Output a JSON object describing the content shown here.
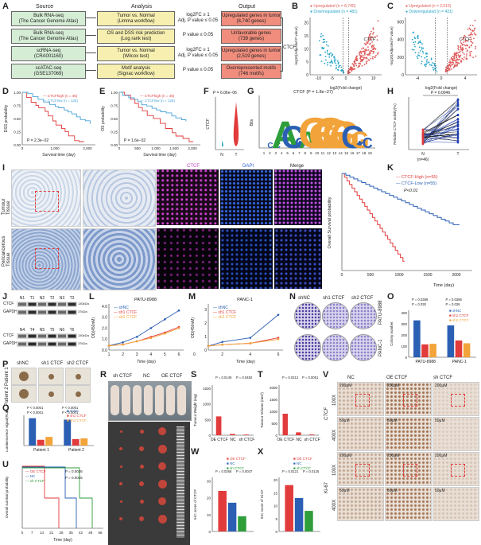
{
  "panelA": {
    "label": "A",
    "headers": [
      "Source",
      "Analysis",
      "Output"
    ],
    "rows": [
      {
        "source": "Bulk RNA-seq\n(The Cancer Genome Atlas)",
        "analysis": "Tumor vs. Normal\n(Limma workflow)",
        "criteria": "log2FC ≥ 1\nAdj. P value ≤ 0.05",
        "output": "Upregulated genes in tumor\n(8,740 genes)"
      },
      {
        "source": "Bulk RNA-seq\n(The Cancer Genome Atlas)",
        "analysis": "OS and DSS risk prediction\n(Log rank test)",
        "criteria": "P value ≤ 0.05",
        "output": "Unfavorable genes\n(739 genes)"
      },
      {
        "source": "scRNA-seq\n(CRA001160)",
        "analysis": "Tumor vs. Normal\n(Wilcox test)",
        "criteria": "log2FC ≥ 1\nAdj. P value ≤ 0.05",
        "output": "Upregulated genes in tumor\n(2,519 genes)"
      },
      {
        "source": "scATAC-seq\n(GSE137069)",
        "analysis": "Motif analysis\n(Signac workflow)",
        "criteria": "P value ≤ 0.05",
        "output": "Overrepresented motifs\n(746 motifs)"
      }
    ],
    "result": "CTCF"
  },
  "panelB": {
    "label": "B",
    "legend_up": "Upregulated (n = 8,740)",
    "legend_down": "Downregulated (n = 481)",
    "gene": "CTCF",
    "xlabel": "log2(Fold change)",
    "ylabel": "-log10(Adjusted P value)",
    "xticks": [
      "-10",
      "-5",
      "0",
      "5",
      "10"
    ],
    "yticks": [
      "0",
      "5",
      "10",
      "15",
      "20"
    ]
  },
  "panelC": {
    "label": "C",
    "legend_up": "Upregulated (n = 2,519)",
    "legend_down": "Downregulated (n = 421)",
    "gene": "CTCF",
    "xlabel": "log2(Fold change)",
    "ylabel": "-log10(Adjusted P value)",
    "xticks": [
      "-4",
      "0",
      "4"
    ],
    "yticks": [
      "0",
      "200",
      "400",
      "600"
    ]
  },
  "panelD": {
    "label": "D",
    "legend_high": "CTCFhigh (n = 45)",
    "legend_low": "CTCFlow (n = 125)",
    "pvalue": "P = 2.3e−02",
    "xlabel": "Survival time (day)",
    "ylabel": "DSS probability",
    "xticks": [
      "0",
      "1,000",
      "2,000"
    ],
    "yticks": [
      "0.00",
      "0.25",
      "0.50",
      "0.75",
      "1.00"
    ]
  },
  "panelE": {
    "label": "E",
    "legend_high": "CTCFhigh (n = 45)",
    "legend_low": "CTCFlow (n = 125)",
    "pvalue": "P = 1.6e−02",
    "xlabel": "Survival time (day)",
    "ylabel": "OS probability",
    "xticks": [
      "0",
      "500",
      "1,000",
      "1,500",
      "2,000"
    ],
    "yticks": [
      "0.00",
      "0.25",
      "0.50",
      "0.75",
      "1.00"
    ]
  },
  "panelF": {
    "label": "F",
    "pvalue": "P = 6.06e−06",
    "ylabel": "CTCF",
    "xticks": [
      "N",
      "T"
    ]
  },
  "panelG": {
    "label": "G",
    "title": "CTCF (P = 1.8e−27)",
    "ylabel": "Bits",
    "positions": [
      "1",
      "2",
      "3",
      "4",
      "5",
      "6",
      "7",
      "8",
      "9",
      "10",
      "11",
      "12",
      "13",
      "14",
      "15",
      "16",
      "17",
      "18",
      "19"
    ],
    "logo": "CCACCAGGGGGCGC"
  },
  "panelH": {
    "label": "H",
    "pvalue": "P = 0.0046",
    "ylabel": "Relative CTCF activity(%)",
    "xticks": [
      "N",
      "T"
    ],
    "n": "(n=46)"
  },
  "panelI": {
    "label": "I",
    "row1": "Tumour\nTissue",
    "row2": "Pericancerous\nTissue",
    "channels": [
      "CTCF",
      "DAPI",
      "Merge"
    ]
  },
  "panelK": {
    "label": "K",
    "legend_high": "CTCF-High  (n=55)",
    "legend_low": "CTCF-Low   (n=55)",
    "pvalue": "P<0.01",
    "xlabel": "Time (day)",
    "ylabel": "Overall Survival probability",
    "xticks": [
      "0",
      "500",
      "1000",
      "1500",
      "2000"
    ]
  },
  "panelJ": {
    "label": "J",
    "top_lanes": [
      "N1",
      "T1",
      "N2",
      "T2",
      "N3",
      "T3"
    ],
    "bottom_lanes": [
      "N4",
      "T4",
      "N5",
      "T5",
      "N6",
      "T6"
    ],
    "rows": [
      "CTCF",
      "GAPDH"
    ],
    "kda": [
      "130kDa",
      "37kDa"
    ]
  },
  "panelL": {
    "label": "L",
    "title": "PATU-8988",
    "series": [
      "shNC",
      "sh1 CTCF",
      "sh2 CTCF"
    ],
    "xlabel": "Time (day)",
    "ylabel": "OD(450nM)",
    "xticks": [
      "1",
      "2",
      "3",
      "4",
      "5",
      "6"
    ],
    "yticks": [
      "0.0",
      "1.0",
      "2.0",
      "3.0",
      "4.0"
    ]
  },
  "panelM": {
    "label": "M",
    "title": "PANC-1",
    "series": [
      "shNC",
      "sh1 CTCF",
      "sh2 CTCF"
    ],
    "xlabel": "Time (day)",
    "ylabel": "OD(450nM)",
    "xticks": [
      "0",
      "2",
      "4",
      "6"
    ],
    "yticks": [
      "0",
      "1",
      "2",
      "3"
    ]
  },
  "panelN": {
    "label": "N",
    "cols": [
      "shNC",
      "sh1 CTCF",
      "sh2 CTCF"
    ],
    "rows": [
      "PATU-8988",
      "PANC-1"
    ]
  },
  "panelO": {
    "label": "O",
    "series": [
      "shNC",
      "sh1 CTCF",
      "sh2 CTCF"
    ],
    "categories": [
      "PATU-8988",
      "PANC-1"
    ],
    "ylabel": "Colony number",
    "pvals": [
      "P = 0.0386",
      "P = 0.0386",
      "P = 0.030",
      "P = 0.036"
    ],
    "yticks": [
      "0",
      "100",
      "200",
      "300",
      "400"
    ]
  },
  "panelP": {
    "label": "P",
    "cols": [
      "shNC",
      "sh1 CTCF",
      "sh2 CTCF"
    ],
    "rows": [
      "Patient 1",
      "Patient 2"
    ]
  },
  "panelQ": {
    "label": "Q",
    "series": [
      "shNC",
      "sh1 CTCF",
      "sh2 CTCF"
    ],
    "categories": [
      "Patient 1",
      "Patient 2"
    ],
    "ylabel": "Luminescence signal(RLU)",
    "pvals": [
      "P < 0.0001",
      "P < 0.0001",
      "P < 0.0001",
      "P < 0.0001"
    ]
  },
  "panelR": {
    "label": "R",
    "cols": [
      "sh CTCF",
      "NC",
      "OE CTCF"
    ]
  },
  "panelS": {
    "label": "S",
    "ylabel": "Tumour Weight (mg)",
    "categories": [
      "OE CTCF",
      "NC",
      "sh CTCF"
    ],
    "pvals": [
      "P = 0.0149",
      "P = 0.0482"
    ],
    "yticks": [
      "0",
      "500",
      "1000",
      "1500"
    ]
  },
  "panelT": {
    "label": "T",
    "ylabel": "Tumour Volume (mm³)",
    "categories": [
      "OE CTCF",
      "NC",
      "sh CTCF"
    ],
    "pvals": [
      "P = 0.0212",
      "P = 0.0051"
    ],
    "yticks": [
      "0",
      "500",
      "1000",
      "1500",
      "2000"
    ]
  },
  "panelU": {
    "label": "U",
    "series": [
      "OE CTCF",
      "NC",
      "sh CTCF"
    ],
    "pvals": [
      "P = 0.0036",
      "P = 0.0045"
    ],
    "xlabel": "Time (day)",
    "ylabel": "Overall survival probability",
    "xticks": [
      "0",
      "7",
      "14",
      "21",
      "28",
      "35",
      "42",
      "49",
      "56"
    ]
  },
  "panelV": {
    "label": "V",
    "cols": [
      "NC",
      "OE CTCF",
      "sh CTCF"
    ],
    "rows": [
      "100X",
      "400X",
      "100X",
      "400X"
    ],
    "groups": [
      "CTCF",
      "Ki-67"
    ],
    "scale": [
      "200μM",
      "50μM"
    ]
  },
  "panelW": {
    "label": "W",
    "series": [
      "OE CTCF",
      "NC",
      "sh CTCF"
    ],
    "ylabel": "IHC score of CTCF",
    "pvals": [
      "P = 0.0266",
      "P = 0.0037"
    ],
    "yticks": [
      "0",
      "10",
      "20",
      "30"
    ]
  },
  "panelX": {
    "label": "X",
    "series": [
      "OE CTCF",
      "NC",
      "sh CTCF"
    ],
    "ylabel": "IHC score of Ki-67",
    "pvals": [
      "P = 0.0121",
      "P = 0.0125"
    ],
    "yticks": [
      "0",
      "5",
      "10",
      "15",
      "20"
    ]
  },
  "colors": {
    "red": "#e23b3b",
    "blue": "#2b5fb4",
    "orange": "#f2a43a",
    "green": "#2e9e3b",
    "up": "#e05a5a",
    "down": "#2aa6c8"
  }
}
